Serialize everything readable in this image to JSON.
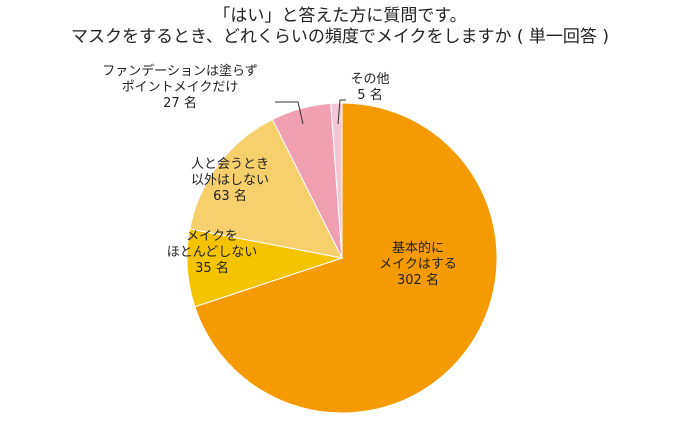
{
  "title": {
    "line1": "「はい」と答えた方に質問です。",
    "line2": "マスクをするとき、どれくらいの頻度でメイクをしますか ( 単一回答 )"
  },
  "chart_data": {
    "type": "pie",
    "unit": "名",
    "slices": [
      {
        "label": [
          "基本的に",
          "メイクはする"
        ],
        "value": 302,
        "color": "#f59a00"
      },
      {
        "label": [
          "メイクを",
          "ほとんどしない"
        ],
        "value": 35,
        "color": "#f5c400"
      },
      {
        "label": [
          "人と会うとき",
          "以外はしない"
        ],
        "value": 63,
        "color": "#f7cf6b"
      },
      {
        "label": [
          "ファンデーションは塗らず",
          "ポイントメイクだけ"
        ],
        "value": 27,
        "color": "#f0a0b0"
      },
      {
        "label": [
          "その他"
        ],
        "value": 5,
        "color": "#f7c6d6"
      }
    ],
    "start": "12 o'clock",
    "direction": "clockwise"
  }
}
